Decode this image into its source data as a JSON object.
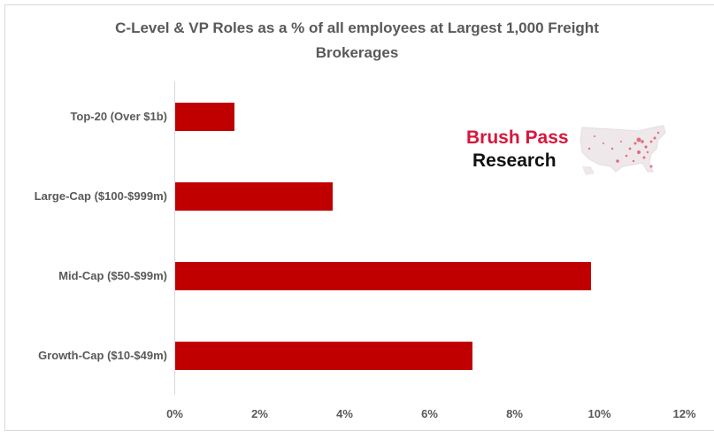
{
  "chart_data": {
    "type": "bar",
    "orientation": "horizontal",
    "title": "C-Level & VP Roles as a % of all employees at Largest 1,000 Freight Brokerages",
    "categories": [
      "Top-20 (Over $1b)",
      "Large-Cap ($100-$999m)",
      "Mid-Cap ($50-$99m)",
      "Growth-Cap ($10-$49m)"
    ],
    "values": [
      1.4,
      3.7,
      9.8,
      7.0
    ],
    "unit": "%",
    "xlabel": "",
    "ylabel": "",
    "xlim": [
      0,
      12
    ],
    "x_ticks": [
      "0%",
      "2%",
      "4%",
      "6%",
      "8%",
      "10%",
      "12%"
    ],
    "grid": false,
    "legend": null,
    "bar_color": "#c00000"
  },
  "title": {
    "line1": "C-Level & VP Roles as a % of all employees at Largest 1,000 Freight",
    "line2": "Brokerages"
  },
  "logo": {
    "line1": "Brush Pass",
    "line2": "Research",
    "accent_color": "#d6173c",
    "icon": "us-map-icon"
  }
}
